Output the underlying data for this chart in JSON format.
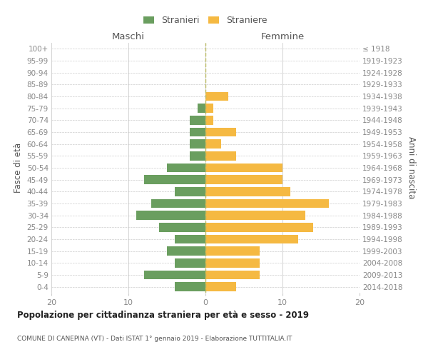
{
  "age_groups": [
    "0-4",
    "5-9",
    "10-14",
    "15-19",
    "20-24",
    "25-29",
    "30-34",
    "35-39",
    "40-44",
    "45-49",
    "50-54",
    "55-59",
    "60-64",
    "65-69",
    "70-74",
    "75-79",
    "80-84",
    "85-89",
    "90-94",
    "95-99",
    "100+"
  ],
  "birth_years": [
    "2014-2018",
    "2009-2013",
    "2004-2008",
    "1999-2003",
    "1994-1998",
    "1989-1993",
    "1984-1988",
    "1979-1983",
    "1974-1978",
    "1969-1973",
    "1964-1968",
    "1959-1963",
    "1954-1958",
    "1949-1953",
    "1944-1948",
    "1939-1943",
    "1934-1938",
    "1929-1933",
    "1924-1928",
    "1919-1923",
    "≤ 1918"
  ],
  "maschi": [
    4,
    8,
    4,
    5,
    4,
    6,
    9,
    7,
    4,
    8,
    5,
    2,
    2,
    2,
    2,
    1,
    0,
    0,
    0,
    0,
    0
  ],
  "femmine": [
    4,
    7,
    7,
    7,
    12,
    14,
    13,
    16,
    11,
    10,
    10,
    4,
    2,
    4,
    1,
    1,
    3,
    0,
    0,
    0,
    0
  ],
  "color_maschi": "#6a9e5f",
  "color_femmine": "#f5b942",
  "title": "Popolazione per cittadinanza straniera per età e sesso - 2019",
  "subtitle": "COMUNE DI CANEPINA (VT) - Dati ISTAT 1° gennaio 2019 - Elaborazione TUTTITALIA.IT",
  "ylabel_left": "Fasce di età",
  "ylabel_right": "Anni di nascita",
  "label_maschi": "Maschi",
  "label_femmine": "Femmine",
  "legend_maschi": "Stranieri",
  "legend_femmine": "Straniere",
  "xlim": 20,
  "bg_color": "#ffffff",
  "grid_color": "#cccccc",
  "axis_label_color": "#555555",
  "tick_label_color": "#888888",
  "center_line_color": "#aaaaaa",
  "title_color": "#222222",
  "subtitle_color": "#555555"
}
